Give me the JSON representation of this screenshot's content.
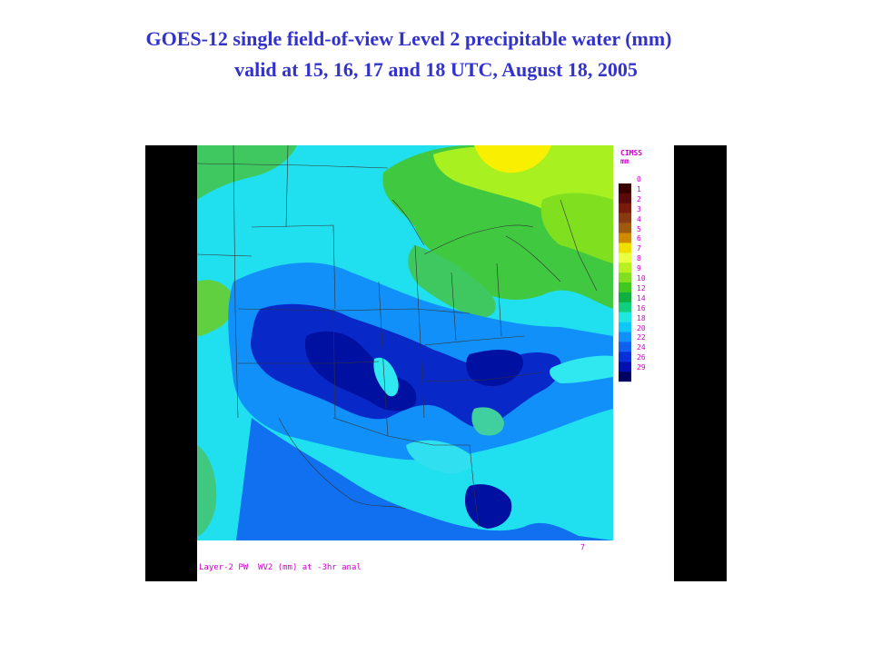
{
  "slide": {
    "title_line1": "GOES-12 single field-of-view Level 2 precipitable water (mm)",
    "title_line2": "valid at 15, 16, 17 and 18 UTC, August 18, 2005"
  },
  "map": {
    "legend": {
      "title_line1": "CIMSS",
      "title_line2": "mm",
      "levels": [
        {
          "label": "0",
          "color": "#3a0000"
        },
        {
          "label": "1",
          "color": "#5a0a0a"
        },
        {
          "label": "2",
          "color": "#7a1a0a"
        },
        {
          "label": "3",
          "color": "#8a3a10"
        },
        {
          "label": "4",
          "color": "#a05a10"
        },
        {
          "label": "5",
          "color": "#d08a00"
        },
        {
          "label": "6",
          "color": "#f0e000"
        },
        {
          "label": "7",
          "color": "#e8ff40"
        },
        {
          "label": "8",
          "color": "#b8f020"
        },
        {
          "label": "9",
          "color": "#80e020"
        },
        {
          "label": "10",
          "color": "#40c820"
        },
        {
          "label": "12",
          "color": "#10b040"
        },
        {
          "label": "14",
          "color": "#10d080"
        },
        {
          "label": "16",
          "color": "#20e8e0"
        },
        {
          "label": "18",
          "color": "#10c8f8"
        },
        {
          "label": "20",
          "color": "#1090f8"
        },
        {
          "label": "22",
          "color": "#1060f0"
        },
        {
          "label": "24",
          "color": "#0830d8"
        },
        {
          "label": "26",
          "color": "#0010b0"
        },
        {
          "label": "29",
          "color": "#000060"
        }
      ]
    },
    "caption": "Layer-2 PW  WV2 (mm) at -3hr anal",
    "corner_mark": "7"
  }
}
